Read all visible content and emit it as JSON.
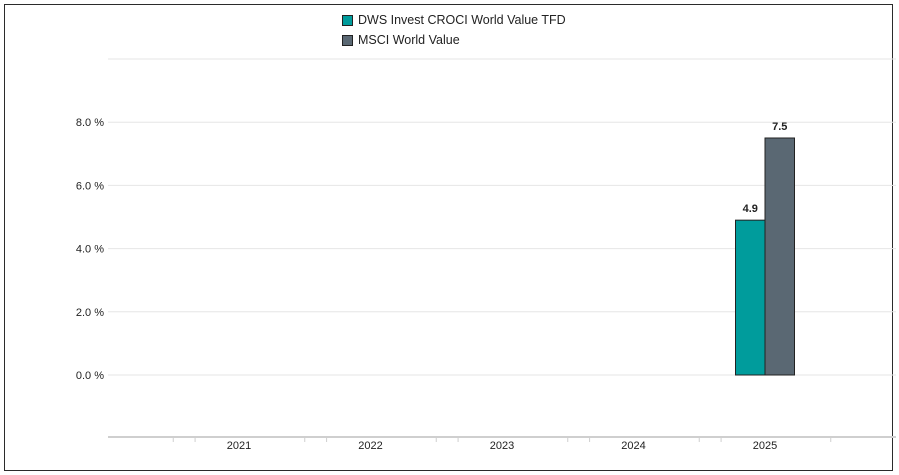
{
  "colors": {
    "series_1": "#009c9c",
    "series_2": "#5a6873",
    "grid": "#e6e6e6",
    "axis": "#cfcfcf",
    "border": "#2b2b2b"
  },
  "chart_data": {
    "type": "bar",
    "categories": [
      "2021",
      "2022",
      "2023",
      "2024",
      "2025"
    ],
    "series": [
      {
        "name": "DWS Invest CROCI World Value TFD",
        "values": [
          null,
          null,
          null,
          null,
          4.9
        ]
      },
      {
        "name": "MSCI World Value",
        "values": [
          null,
          null,
          null,
          null,
          7.5
        ]
      }
    ],
    "data_labels": [
      {
        "series": 0,
        "category": "2025",
        "text": "4.9"
      },
      {
        "series": 1,
        "category": "2025",
        "text": "7.5"
      }
    ],
    "y_ticks": [
      {
        "value": 8,
        "label": "8.0 %"
      },
      {
        "value": 6,
        "label": "6.0 %"
      },
      {
        "value": 4,
        "label": "4.0 %"
      },
      {
        "value": 2,
        "label": "2.0 %"
      },
      {
        "value": 0,
        "label": "0.0 %"
      }
    ],
    "ylim": [
      -2,
      10
    ],
    "title": "",
    "xlabel": "",
    "ylabel": "",
    "legend_position": "top-center",
    "grid": true
  }
}
